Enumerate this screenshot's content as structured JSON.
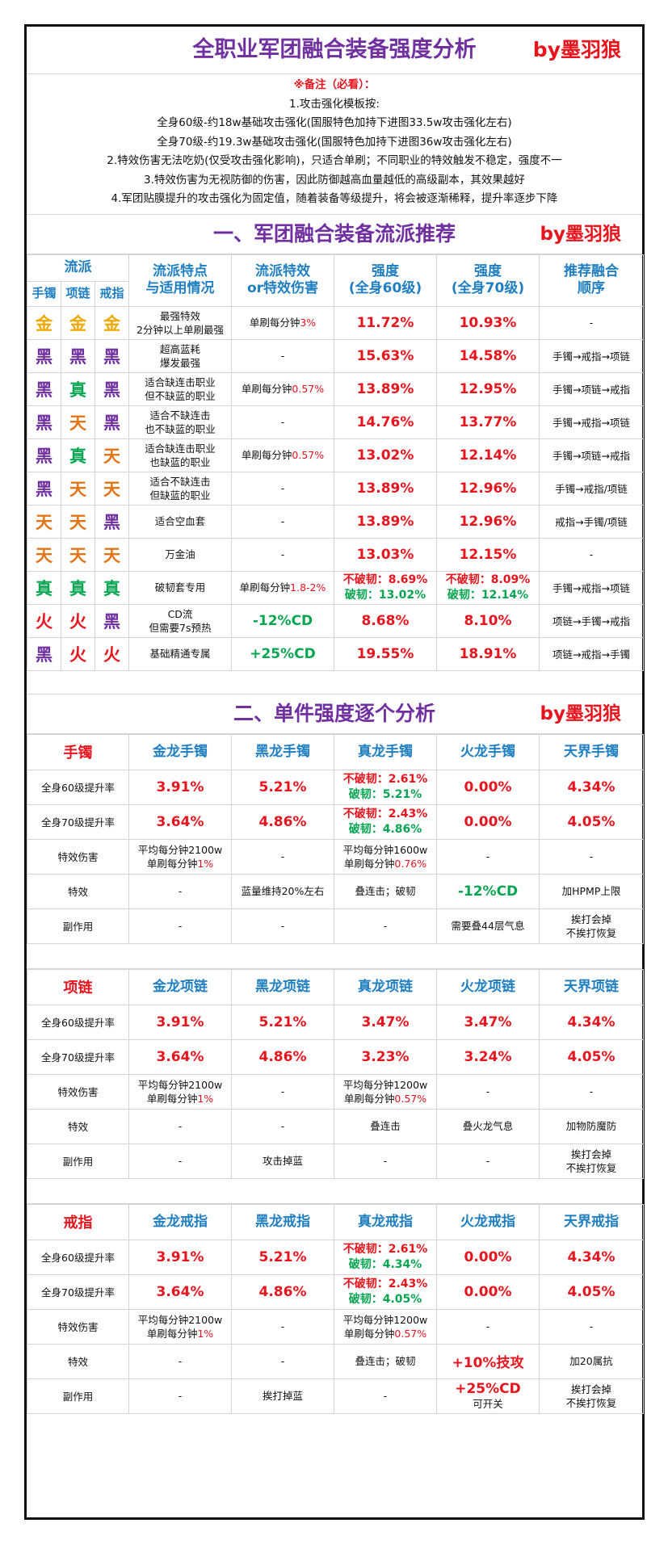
{
  "header": {
    "title": "全职业军团融合装备强度分析",
    "by": "by墨羽狼"
  },
  "notes": {
    "heading": "※备注（必看）：",
    "lines": [
      "1.攻击强化模板按:",
      "全身60级-约18w基础攻击强化(国服特色加持下进图33.5w攻击强化左右)",
      "全身70级-约19.3w基础攻击强化(国服特色加持下进图36w攻击强化左右)",
      "2.特效伤害无法吃奶(仅受攻击强化影响)，只适合单刷；不同职业的特效触发不稳定，强度不一",
      "3.特效伤害为无视防御的伤害，因此防御越高血量越低的高级副本，其效果越好",
      "4.军团贴膜提升的攻击强化为固定值，随着装备等级提升，将会被逐渐稀释，提升率逐步下降"
    ]
  },
  "section1": {
    "title": "一、军团融合装备流派推荐",
    "by": "by墨羽狼",
    "headers": {
      "school": "流派",
      "bracelet": "手镯",
      "necklace": "项链",
      "ring": "戒指",
      "feature": [
        "流派特点",
        "与适用情况"
      ],
      "effect": [
        "流派特效",
        "or特效伤害"
      ],
      "lv60": [
        "强度",
        "(全身60级)"
      ],
      "lv70": [
        "强度",
        "(全身70级)"
      ],
      "order": [
        "推荐融合",
        "顺序"
      ]
    },
    "rows": [
      {
        "g": [
          "金",
          "金",
          "金"
        ],
        "feat": [
          "最强特效",
          "2分钟以上单刷最强"
        ],
        "eff": "单刷每分钟",
        "effv": "3%",
        "s60": "11.72%",
        "s70": "10.93%",
        "order": "-"
      },
      {
        "g": [
          "黑",
          "黑",
          "黑"
        ],
        "feat": [
          "超高蓝耗",
          "爆发最强"
        ],
        "eff": "-",
        "s60": "15.63%",
        "s70": "14.58%",
        "order": "手镯→戒指→项链"
      },
      {
        "g": [
          "黑",
          "真",
          "黑"
        ],
        "feat": [
          "适合缺连击职业",
          "但不缺蓝的职业"
        ],
        "eff": "单刷每分钟",
        "effv": "0.57%",
        "s60": "13.89%",
        "s70": "12.95%",
        "order": "手镯→项链→戒指"
      },
      {
        "g": [
          "黑",
          "天",
          "黑"
        ],
        "feat": [
          "适合不缺连击",
          "也不缺蓝的职业"
        ],
        "eff": "-",
        "s60": "14.76%",
        "s70": "13.77%",
        "order": "手镯→戒指→项链"
      },
      {
        "g": [
          "黑",
          "真",
          "天"
        ],
        "feat": [
          "适合缺连击职业",
          "也缺蓝的职业"
        ],
        "eff": "单刷每分钟",
        "effv": "0.57%",
        "s60": "13.02%",
        "s70": "12.14%",
        "order": "手镯→项链→戒指"
      },
      {
        "g": [
          "黑",
          "天",
          "天"
        ],
        "feat": [
          "适合不缺连击",
          "但缺蓝的职业"
        ],
        "eff": "-",
        "s60": "13.89%",
        "s70": "12.96%",
        "order": "手镯→戒指/项链"
      },
      {
        "g": [
          "天",
          "天",
          "黑"
        ],
        "feat": [
          "适合空血套"
        ],
        "eff": "-",
        "s60": "13.89%",
        "s70": "12.96%",
        "order": "戒指→手镯/项链"
      },
      {
        "g": [
          "天",
          "天",
          "天"
        ],
        "feat": [
          "万金油"
        ],
        "eff": "-",
        "s60": "13.03%",
        "s70": "12.15%",
        "order": "-"
      },
      {
        "g": [
          "真",
          "真",
          "真"
        ],
        "feat": [
          "破韧套专用"
        ],
        "eff": "单刷每分钟",
        "effv": "1.8-2%",
        "s60a": "不破韧：8.69%",
        "s60b": "破韧：13.02%",
        "s70a": "不破韧：8.09%",
        "s70b": "破韧：12.14%",
        "order": "手镯→戒指→项链"
      },
      {
        "g": [
          "火",
          "火",
          "黑"
        ],
        "feat": [
          "CD流",
          "但需要7s预热"
        ],
        "effbig": "-12%CD",
        "s60": "8.68%",
        "s70": "8.10%",
        "order": "项链→手镯→戒指"
      },
      {
        "g": [
          "黑",
          "火",
          "火"
        ],
        "feat": [
          "基础精通专属"
        ],
        "effbig": "+25%CD",
        "s60": "19.55%",
        "s70": "18.91%",
        "order": "项链→戒指→手镯"
      }
    ]
  },
  "section2": {
    "title": "二、单件强度逐个分析",
    "by": "by墨羽狼",
    "row_labels": [
      "全身60级提升率",
      "全身70级提升率",
      "特效伤害",
      "特效",
      "副作用"
    ],
    "bracelet": {
      "title": "手镯",
      "items": [
        "金龙手镯",
        "黑龙手镯",
        "真龙手镯",
        "火龙手镯",
        "天界手镯"
      ],
      "r60": [
        "3.91%",
        "5.21%",
        [
          "不破韧：2.61%",
          "破韧：5.21%"
        ],
        "0.00%",
        "4.34%"
      ],
      "r70": [
        "3.64%",
        "4.86%",
        [
          "不破韧：2.43%",
          "破韧：4.86%"
        ],
        "0.00%",
        "4.05%"
      ],
      "dmg": [
        [
          "平均每分钟2100w",
          "单刷每分钟",
          "1%"
        ],
        "-",
        [
          "平均每分钟1600w",
          "单刷每分钟",
          "0.76%"
        ],
        "-",
        "-"
      ],
      "eff": [
        "-",
        "蓝量维持20%左右",
        "叠连击；破韧",
        "-12%CD",
        "加HPMP上限"
      ],
      "side": [
        "-",
        "-",
        "-",
        "需要叠44层气息",
        [
          "挨打会掉",
          "不挨打恢复"
        ]
      ]
    },
    "necklace": {
      "title": "项链",
      "items": [
        "金龙项链",
        "黑龙项链",
        "真龙项链",
        "火龙项链",
        "天界项链"
      ],
      "r60": [
        "3.91%",
        "5.21%",
        "3.47%",
        "3.47%",
        "4.34%"
      ],
      "r70": [
        "3.64%",
        "4.86%",
        "3.23%",
        "3.24%",
        "4.05%"
      ],
      "dmg": [
        [
          "平均每分钟2100w",
          "单刷每分钟",
          "1%"
        ],
        "-",
        [
          "平均每分钟1200w",
          "单刷每分钟",
          "0.57%"
        ],
        "-",
        "-"
      ],
      "eff": [
        "-",
        "-",
        "叠连击",
        "叠火龙气息",
        "加物防魔防"
      ],
      "side": [
        "-",
        "攻击掉蓝",
        "-",
        "-",
        [
          "挨打会掉",
          "不挨打恢复"
        ]
      ]
    },
    "ring": {
      "title": "戒指",
      "items": [
        "金龙戒指",
        "黑龙戒指",
        "真龙戒指",
        "火龙戒指",
        "天界戒指"
      ],
      "r60": [
        "3.91%",
        "5.21%",
        [
          "不破韧：2.61%",
          "破韧：4.34%"
        ],
        "0.00%",
        "4.34%"
      ],
      "r70": [
        "3.64%",
        "4.86%",
        [
          "不破韧：2.43%",
          "破韧：4.05%"
        ],
        "0.00%",
        "4.05%"
      ],
      "dmg": [
        [
          "平均每分钟2100w",
          "单刷每分钟",
          "1%"
        ],
        "-",
        [
          "平均每分钟1200w",
          "单刷每分钟",
          "0.57%"
        ],
        "-",
        "-"
      ],
      "eff": [
        "-",
        "-",
        "叠连击；破韧",
        "+10%技攻",
        "加20属抗"
      ],
      "side": [
        "-",
        "挨打掉蓝",
        "-",
        [
          "+25%CD",
          "可开关"
        ],
        [
          "挨打会掉",
          "不挨打恢复"
        ]
      ]
    }
  },
  "colors": {
    "purple": "#7030a0",
    "red": "#e8141d",
    "blue": "#1f7fc0",
    "green": "#0aa552",
    "gold": "#f0a800",
    "orange": "#e37416"
  }
}
